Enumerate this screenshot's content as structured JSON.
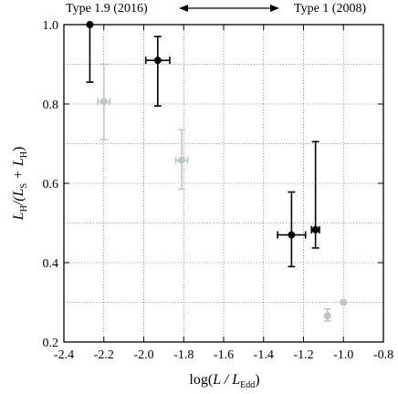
{
  "chart_data": {
    "type": "scatter",
    "title": "",
    "xlabel": {
      "prefix": "log(",
      "main": "L / L",
      "sub": "Edd",
      "suffix": ")"
    },
    "ylabel": {
      "a": "L",
      "a_sub": "H",
      "b": "/(L",
      "b_sub": "S",
      "c": " + L",
      "c_sub": "H",
      "d": ")"
    },
    "xlim": [
      -2.4,
      -0.8
    ],
    "ylim": [
      0.2,
      1.0
    ],
    "x_ticks": [
      -2.4,
      -2.2,
      -2.0,
      -1.8,
      -1.6,
      -1.4,
      -1.2,
      -1.0,
      -0.8
    ],
    "x_tick_labels": [
      "-2.4",
      "-2.2",
      "-2.0",
      "-1.8",
      "-1.6",
      "-1.4",
      "-1.2",
      "-1.0",
      "-0.8"
    ],
    "y_ticks": [
      0.2,
      0.4,
      0.6,
      0.8,
      1.0
    ],
    "y_tick_labels": [
      "0.2",
      "0.4",
      "0.6",
      "0.8",
      "1.0"
    ],
    "y_minor_grid": [
      0.3,
      0.5,
      0.7,
      0.9
    ],
    "grid": true,
    "annotations": {
      "left": "Type 1.9 (2016)",
      "right": "Type 1 (2008)",
      "arrow": "double-headed"
    },
    "colors": {
      "black": "#000000",
      "gray": "#bcc7c9"
    },
    "series": [
      {
        "color": "black",
        "points": [
          {
            "x": -2.27,
            "y": 1.0,
            "y_lo": 0.855,
            "y_hi": 1.0,
            "x_err": 0.0
          },
          {
            "x": -1.93,
            "y": 0.91,
            "y_lo": 0.795,
            "y_hi": 0.97,
            "x_err": 0.06
          },
          {
            "x": -1.26,
            "y": 0.47,
            "y_lo": 0.39,
            "y_hi": 0.578,
            "x_err": 0.07
          },
          {
            "x": -1.14,
            "y": 0.483,
            "y_lo": 0.437,
            "y_hi": 0.705,
            "x_err": 0.02
          }
        ]
      },
      {
        "color": "gray",
        "points": [
          {
            "x": -2.2,
            "y": 0.806,
            "y_lo": 0.71,
            "y_hi": 0.9,
            "x_err": 0.03
          },
          {
            "x": -1.81,
            "y": 0.658,
            "y_lo": 0.585,
            "y_hi": 0.735,
            "x_err": 0.03
          },
          {
            "x": -1.08,
            "y": 0.266,
            "y_lo": 0.253,
            "y_hi": 0.283,
            "x_err": 0.0
          },
          {
            "x": -1.0,
            "y": 0.3,
            "y_lo": 0.3,
            "y_hi": 0.3,
            "x_err": 0.0
          }
        ]
      }
    ]
  }
}
